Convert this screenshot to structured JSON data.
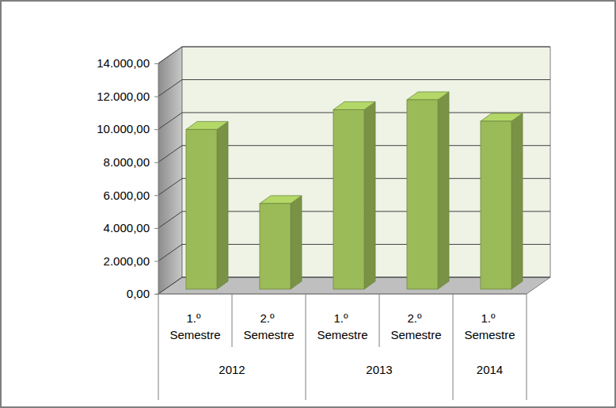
{
  "chart_data": {
    "type": "bar",
    "categories": [
      "1.º Semestre",
      "2.º Semestre",
      "1.º Semestre",
      "2.º Semestre",
      "1.º Semestre"
    ],
    "groups": [
      {
        "label": "2012",
        "size": 2
      },
      {
        "label": "2013",
        "size": 2
      },
      {
        "label": "2014",
        "size": 1
      }
    ],
    "values": [
      9700,
      5200,
      10900,
      11500,
      10200
    ],
    "color": "#9bbb59",
    "ylim": [
      0,
      14000
    ],
    "yticks": [
      {
        "value": 0,
        "label": "0,00"
      },
      {
        "value": 2000,
        "label": "2.000,00"
      },
      {
        "value": 4000,
        "label": "4.000,00"
      },
      {
        "value": 6000,
        "label": "6.000,00"
      },
      {
        "value": 8000,
        "label": "8.000,00"
      },
      {
        "value": 10000,
        "label": "10.000,00"
      },
      {
        "value": 12000,
        "label": "12.000,00"
      },
      {
        "value": 14000,
        "label": "14.000,00"
      }
    ],
    "grid": true
  }
}
